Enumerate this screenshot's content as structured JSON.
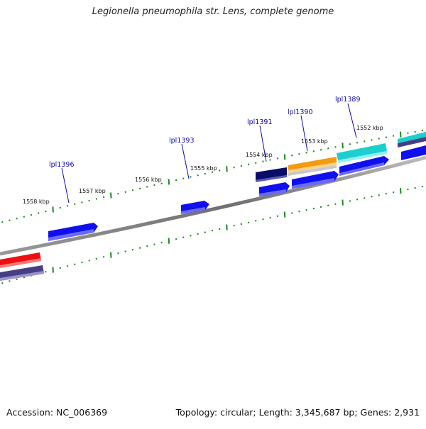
{
  "title": "Legionella pneumophila str. Lens, complete genome",
  "footer": {
    "accession": "Accession: NC_006369",
    "summary": "Topology: circular; Length: 3,345,687 bp; Genes: 2,931"
  },
  "ticks": [
    {
      "label": "1552 kbp"
    },
    {
      "label": "1553 kbp"
    },
    {
      "label": "1554 kbp"
    },
    {
      "label": "1555 kbp"
    },
    {
      "label": "1556 kbp"
    },
    {
      "label": "1557 kbp"
    },
    {
      "label": "1558 kbp"
    }
  ],
  "gene_labels": [
    {
      "label": "lpl1389"
    },
    {
      "label": "lpl1390"
    },
    {
      "label": "lpl1391"
    },
    {
      "label": "lpl1393"
    },
    {
      "label": "lpl1396"
    }
  ],
  "colors": {
    "backbone": "#7a7a7a",
    "tick": "#1a8a1a",
    "tick_label": "#111111",
    "gene_label": "#0a0ab4",
    "gene_blue": "#1010ee",
    "gene_navy": "#0c0c6a",
    "gene_orange": "#f39a10",
    "gene_cyan": "#1ccfcf",
    "gene_red": "#ee1010",
    "gene_slate": "#463f86"
  }
}
